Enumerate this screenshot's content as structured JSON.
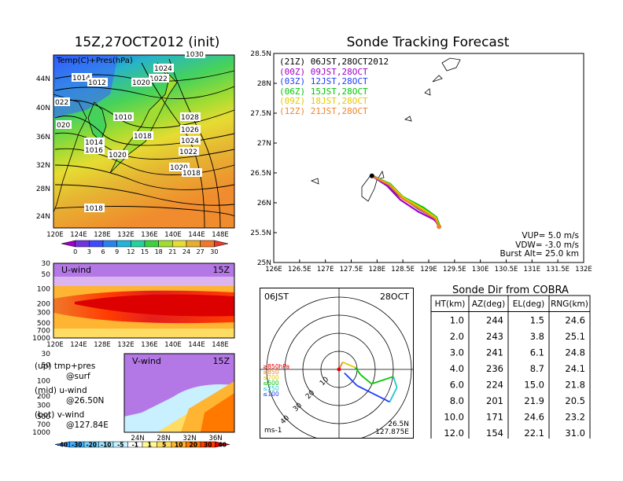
{
  "main_title": "15Z,27OCT2012 (init)",
  "tracking_title": "Sonde Tracking Forecast",
  "map_panel": {
    "subtitle": "Temp(C)+Pres(hPa)",
    "lat_labels": [
      "44N",
      "40N",
      "36N",
      "32N",
      "28N",
      "24N"
    ],
    "lon_labels": [
      "120E",
      "124E",
      "128E",
      "132E",
      "136E",
      "140E",
      "144E",
      "148E"
    ],
    "isobar_labels": [
      "1030",
      "1024",
      "1022",
      "1020",
      "1014",
      "1012",
      "1010",
      "1028",
      "1026",
      "1024",
      "1022",
      "1020",
      "1018",
      "1018",
      "1014",
      "1016",
      "1020",
      "1018",
      "022",
      "020"
    ],
    "colorbar_ticks": [
      "0",
      "3",
      "6",
      "9",
      "12",
      "15",
      "18",
      "21",
      "24",
      "27",
      "30"
    ],
    "colorbar_colors": [
      "#9d00c6",
      "#6e32e0",
      "#3c4bff",
      "#2882f0",
      "#1eb4dc",
      "#24d2a0",
      "#3cd23c",
      "#a0dc32",
      "#e6dc32",
      "#e6af2d",
      "#f07828",
      "#e63c28"
    ]
  },
  "uwind_panel": {
    "label": "U-wind",
    "time": "15Z",
    "pres_labels": [
      "30",
      "50",
      "100",
      "200",
      "300",
      "500",
      "700",
      "1000"
    ],
    "lon_labels": [
      "120E",
      "124E",
      "128E",
      "132E",
      "136E",
      "140E",
      "144E",
      "148E"
    ]
  },
  "vwind_panel": {
    "label": "V-wind",
    "time": "15Z",
    "pres_labels": [
      "30",
      "50",
      "100",
      "200",
      "300",
      "500",
      "700",
      "1000"
    ],
    "lat_labels": [
      "24N",
      "28N",
      "32N",
      "36N"
    ],
    "colorbar_ticks": [
      "-40",
      "-30",
      "-20",
      "-10",
      "-5",
      "-1",
      "1",
      "5",
      "10",
      "20",
      "30",
      "40"
    ],
    "colorbar_colors": [
      "#3296ff",
      "#46b4ff",
      "#78d2ff",
      "#a0e6ff",
      "#c8f0ff",
      "#ffffff",
      "#fffa96",
      "#ffdc64",
      "#ffb432",
      "#ff7800",
      "#ff3c00",
      "#dc0000"
    ]
  },
  "legend_notes": [
    {
      "line1": "(up) tmp+pres",
      "line2": "@surf"
    },
    {
      "line1": "(mid) u-wind",
      "line2": "@26.50N"
    },
    {
      "line1": "(bot) v-wind",
      "line2": "@127.84E"
    }
  ],
  "tracking": {
    "lat_labels": [
      "28.5N",
      "28N",
      "27.5N",
      "27N",
      "26.5N",
      "26N",
      "25.5N",
      "25N"
    ],
    "lon_labels": [
      "126E",
      "126.5E",
      "127E",
      "127.5E",
      "128E",
      "128.5E",
      "129E",
      "129.5E",
      "130E",
      "130.5E",
      "131E",
      "131.5E",
      "132E"
    ],
    "legend": [
      {
        "text": "(21Z)  06JST,28OCT2012",
        "color": "#000000"
      },
      {
        "text": "(00Z)  09JST,28OCT",
        "color": "#a000c8"
      },
      {
        "text": "(03Z)  12JST,28OCT",
        "color": "#1e3cff"
      },
      {
        "text": "(06Z)  15JST,28OCT",
        "color": "#00c800"
      },
      {
        "text": "(09Z)  18JST,28OCT",
        "color": "#e6c800"
      },
      {
        "text": "(12Z)  21JST,28OCT",
        "color": "#f08228"
      }
    ],
    "params": [
      "VUP=  5.0  m/s",
      "VDW=  -3.0  m/s",
      "Burst Alt=  25.0  km"
    ]
  },
  "polar": {
    "time_label": "06JST",
    "date_label": "28OCT",
    "ring_labels": [
      "10",
      "20",
      "30",
      "40"
    ],
    "pressure_legend": [
      {
        "text": "≥850hPa",
        "color": "#e60000"
      },
      {
        "text": "≤850",
        "color": "#f08228"
      },
      {
        "text": "≤700",
        "color": "#e6c800"
      },
      {
        "text": "≤500",
        "color": "#00c800"
      },
      {
        "text": "≤250",
        "color": "#1ec8c8"
      },
      {
        "text": "≤100",
        "color": "#1e3cff"
      }
    ],
    "unit": "ms-1",
    "location_lat": "26.5N",
    "location_lon": "127.875E"
  },
  "table": {
    "title": "Sonde Dir from COBRA",
    "headers": [
      "HT(km)",
      "AZ(deg)",
      "EL(deg)",
      "RNG(km)"
    ],
    "rows": [
      [
        "1.0",
        "244",
        "1.5",
        "24.6"
      ],
      [
        "2.0",
        "243",
        "3.8",
        "25.1"
      ],
      [
        "3.0",
        "241",
        "6.1",
        "24.8"
      ],
      [
        "4.0",
        "236",
        "8.7",
        "24.1"
      ],
      [
        "6.0",
        "224",
        "15.0",
        "21.8"
      ],
      [
        "8.0",
        "201",
        "21.9",
        "20.5"
      ],
      [
        "10.0",
        "171",
        "24.6",
        "23.2"
      ],
      [
        "12.0",
        "154",
        "22.1",
        "31.0"
      ]
    ]
  },
  "chart_data": [
    {
      "type": "heatmap",
      "title": "15Z,27OCT2012 (init)",
      "subtitle": "Temp(C)+Pres(hPa)",
      "x_range": [
        120,
        150
      ],
      "y_range": [
        22,
        47
      ],
      "colorbar": [
        0,
        3,
        6,
        9,
        12,
        15,
        18,
        21,
        24,
        27,
        30
      ]
    },
    {
      "type": "heatmap",
      "title": "U-wind",
      "x_range": [
        120,
        150
      ],
      "y_levels_hPa": [
        30,
        50,
        100,
        200,
        300,
        500,
        700,
        1000
      ]
    },
    {
      "type": "heatmap",
      "title": "V-wind",
      "x_range": [
        22,
        38
      ],
      "y_levels_hPa": [
        30,
        50,
        100,
        200,
        300,
        500,
        700,
        1000
      ],
      "colorbar": [
        -40,
        -30,
        -20,
        -10,
        -5,
        -1,
        1,
        5,
        10,
        20,
        30,
        40
      ]
    },
    {
      "type": "line",
      "title": "Sonde Tracking Forecast",
      "xlim": [
        126,
        132
      ],
      "ylim": [
        25,
        28.5
      ],
      "series": [
        {
          "name": "(21Z)  06JST,28OCT2012",
          "color": "#000000",
          "points": [
            [
              127.9,
              26.45
            ],
            [
              128.2,
              26.3
            ],
            [
              128.45,
              26.1
            ],
            [
              128.8,
              25.9
            ],
            [
              129.1,
              25.75
            ],
            [
              129.2,
              25.6
            ]
          ]
        },
        {
          "name": "(00Z)  09JST,28OCT",
          "color": "#a000c8",
          "points": [
            [
              127.9,
              26.45
            ],
            [
              128.2,
              26.28
            ],
            [
              128.45,
              26.05
            ],
            [
              128.8,
              25.85
            ],
            [
              129.1,
              25.72
            ],
            [
              129.2,
              25.63
            ]
          ]
        },
        {
          "name": "(03Z)  12JST,28OCT",
          "color": "#1e3cff",
          "points": [
            [
              127.9,
              26.45
            ],
            [
              128.22,
              26.3
            ],
            [
              128.48,
              26.08
            ],
            [
              128.85,
              25.88
            ],
            [
              129.12,
              25.74
            ],
            [
              129.21,
              25.62
            ]
          ]
        },
        {
          "name": "(06Z)  15JST,28OCT",
          "color": "#00c800",
          "points": [
            [
              127.9,
              26.45
            ],
            [
              128.25,
              26.32
            ],
            [
              128.5,
              26.1
            ],
            [
              128.9,
              25.92
            ],
            [
              129.15,
              25.76
            ],
            [
              129.22,
              25.6
            ]
          ]
        },
        {
          "name": "(09Z)  18JST,28OCT",
          "color": "#e6c800",
          "points": [
            [
              127.9,
              26.45
            ],
            [
              128.24,
              26.31
            ],
            [
              128.5,
              26.09
            ],
            [
              128.88,
              25.9
            ],
            [
              129.14,
              25.75
            ],
            [
              129.21,
              25.58
            ]
          ]
        },
        {
          "name": "(12Z)  21JST,28OCT",
          "color": "#f08228",
          "points": [
            [
              127.9,
              26.45
            ],
            [
              128.23,
              26.3
            ],
            [
              128.49,
              26.07
            ],
            [
              128.86,
              25.88
            ],
            [
              129.13,
              25.73
            ],
            [
              129.2,
              25.6
            ]
          ]
        }
      ]
    },
    {
      "type": "line",
      "title": "06JST 28OCT",
      "polar_hodograph_uv_ms": [
        [
          0,
          0
        ],
        [
          2,
          4
        ],
        [
          9,
          1
        ],
        [
          12,
          -3
        ],
        [
          18,
          -8
        ],
        [
          30,
          -4
        ],
        [
          32,
          -10
        ],
        [
          28,
          -18
        ],
        [
          10,
          -9
        ],
        [
          3,
          -2
        ]
      ]
    },
    {
      "type": "table",
      "title": "Sonde Dir from COBRA"
    }
  ]
}
